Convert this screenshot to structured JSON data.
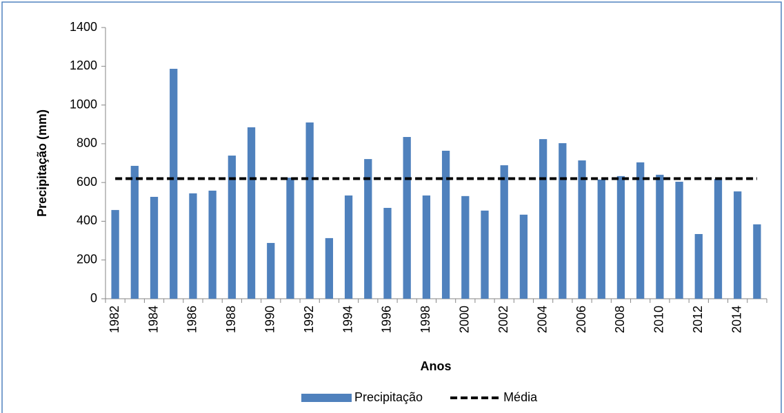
{
  "chart_data": {
    "type": "bar",
    "y_label": "Precipitação (mm)",
    "x_label": "Anos",
    "categories": [
      "1982",
      null,
      "1984",
      null,
      "1986",
      null,
      "1988",
      null,
      "1990",
      null,
      "1992",
      null,
      "1994",
      null,
      "1996",
      null,
      "1998",
      null,
      "2000",
      null,
      "2002",
      null,
      "2004",
      null,
      "2006",
      null,
      "2008",
      null,
      "2010",
      null,
      "2012",
      null,
      "2014",
      null
    ],
    "series": [
      {
        "name": "Precipitação",
        "type": "bar",
        "color": "#4f81bd",
        "values": [
          458,
          686,
          526,
          1187,
          544,
          558,
          739,
          885,
          288,
          625,
          910,
          313,
          533,
          721,
          469,
          835,
          533,
          764,
          530,
          455,
          689,
          434,
          824,
          803,
          714,
          615,
          633,
          704,
          640,
          604,
          334,
          618,
          554,
          384
        ]
      },
      {
        "name": "Média",
        "type": "line",
        "color": "#000000",
        "dashed": true,
        "values": [
          620,
          620,
          620,
          620,
          620,
          620,
          620,
          620,
          620,
          620,
          620,
          620,
          620,
          620,
          620,
          620,
          620,
          620,
          620,
          620,
          620,
          620,
          620,
          620,
          620,
          620,
          620,
          620,
          620,
          620,
          620,
          620,
          620,
          620
        ]
      }
    ],
    "ylim": [
      0,
      1400
    ],
    "yticks": [
      0,
      200,
      400,
      600,
      800,
      1000,
      1200,
      1400
    ],
    "grid": false,
    "legend": "bottom"
  }
}
